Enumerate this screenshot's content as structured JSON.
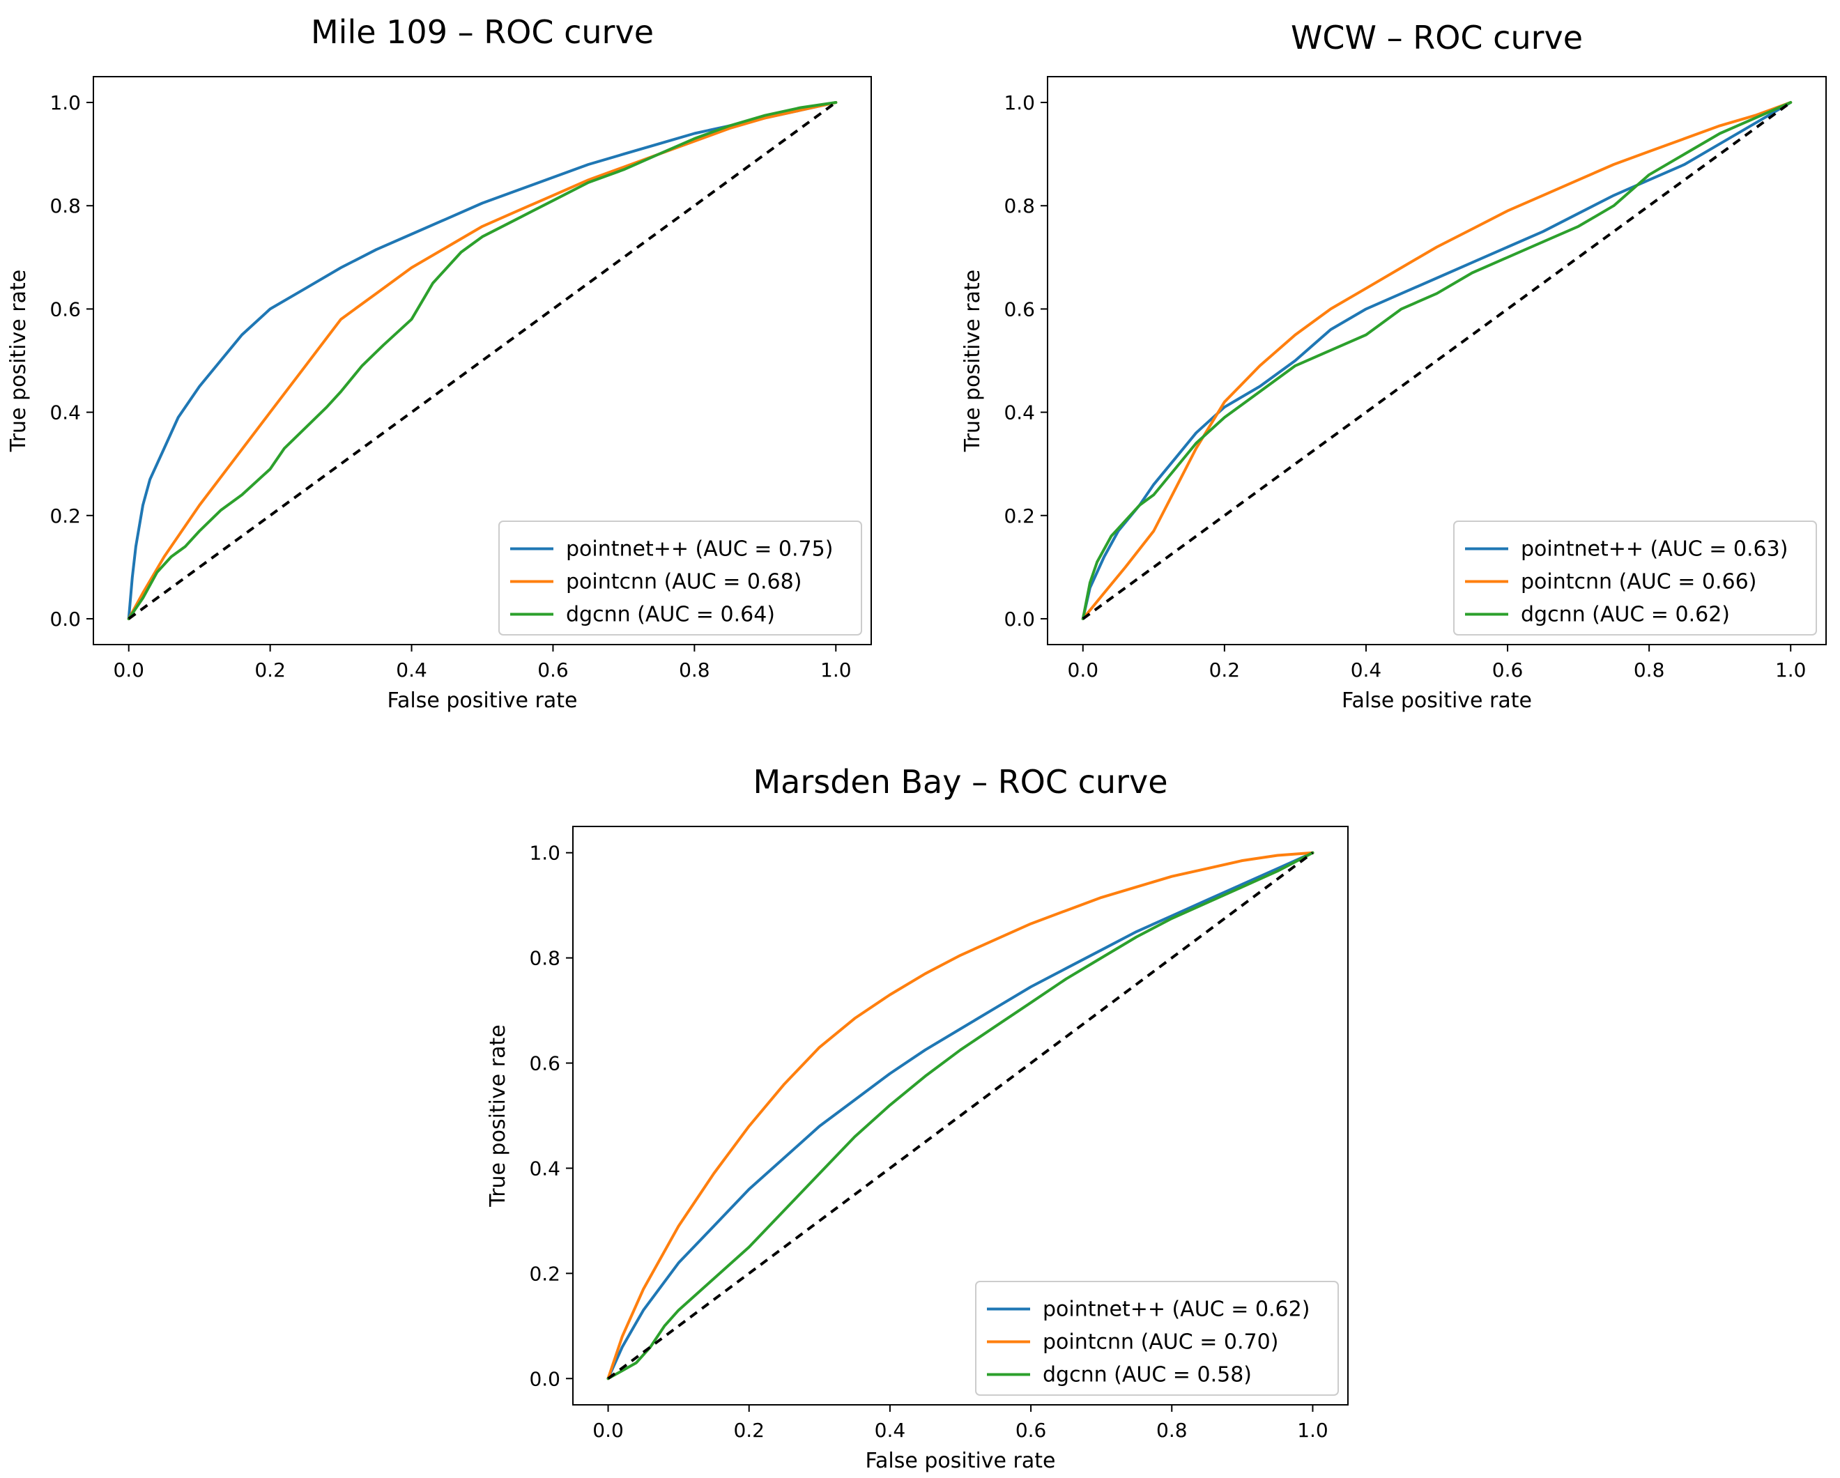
{
  "chart_data": [
    {
      "type": "line",
      "id": "mile109",
      "title": "Mile 109 – ROC curve",
      "xlabel": "False positive rate",
      "ylabel": "True positive rate",
      "xlim": [
        0,
        1
      ],
      "ylim": [
        0,
        1
      ],
      "xticks": [
        "0.0",
        "0.2",
        "0.4",
        "0.6",
        "0.8",
        "1.0"
      ],
      "yticks": [
        "0.0",
        "0.2",
        "0.4",
        "0.6",
        "0.8",
        "1.0"
      ],
      "legend_position": "lower-right",
      "series": [
        {
          "name": "pointnet++ (AUC = 0.75)",
          "color": "#1f77b4",
          "x": [
            0,
            0.005,
            0.01,
            0.02,
            0.03,
            0.05,
            0.07,
            0.1,
            0.13,
            0.16,
            0.2,
            0.25,
            0.3,
            0.35,
            0.4,
            0.45,
            0.5,
            0.55,
            0.6,
            0.65,
            0.7,
            0.75,
            0.8,
            0.85,
            0.9,
            0.95,
            1.0
          ],
          "y": [
            0,
            0.08,
            0.14,
            0.22,
            0.27,
            0.33,
            0.39,
            0.45,
            0.5,
            0.55,
            0.6,
            0.64,
            0.68,
            0.715,
            0.745,
            0.775,
            0.805,
            0.83,
            0.855,
            0.88,
            0.9,
            0.92,
            0.94,
            0.955,
            0.97,
            0.985,
            1.0
          ]
        },
        {
          "name": "pointcnn (AUC = 0.68)",
          "color": "#ff7f0e",
          "x": [
            0,
            0.02,
            0.05,
            0.08,
            0.1,
            0.15,
            0.2,
            0.25,
            0.3,
            0.35,
            0.4,
            0.45,
            0.5,
            0.55,
            0.6,
            0.65,
            0.7,
            0.75,
            0.8,
            0.85,
            0.9,
            0.95,
            1.0
          ],
          "y": [
            0,
            0.05,
            0.12,
            0.18,
            0.22,
            0.31,
            0.4,
            0.49,
            0.58,
            0.63,
            0.68,
            0.72,
            0.76,
            0.79,
            0.82,
            0.85,
            0.875,
            0.9,
            0.925,
            0.95,
            0.97,
            0.985,
            1.0
          ]
        },
        {
          "name": "dgcnn (AUC = 0.64)",
          "color": "#2ca02c",
          "x": [
            0,
            0.02,
            0.04,
            0.06,
            0.08,
            0.1,
            0.13,
            0.16,
            0.2,
            0.22,
            0.25,
            0.28,
            0.3,
            0.33,
            0.36,
            0.4,
            0.43,
            0.47,
            0.5,
            0.55,
            0.6,
            0.65,
            0.7,
            0.75,
            0.8,
            0.85,
            0.9,
            0.95,
            1.0
          ],
          "y": [
            0,
            0.04,
            0.09,
            0.12,
            0.14,
            0.17,
            0.21,
            0.24,
            0.29,
            0.33,
            0.37,
            0.41,
            0.44,
            0.49,
            0.53,
            0.58,
            0.65,
            0.71,
            0.74,
            0.775,
            0.81,
            0.845,
            0.87,
            0.9,
            0.93,
            0.955,
            0.975,
            0.99,
            1.0
          ]
        },
        {
          "name": "chance",
          "color": "#000000",
          "dashed": true,
          "x": [
            0,
            1
          ],
          "y": [
            0,
            1
          ]
        }
      ]
    },
    {
      "type": "line",
      "id": "wcw",
      "title": "WCW – ROC curve",
      "xlabel": "False positive rate",
      "ylabel": "True positive rate",
      "xlim": [
        0,
        1
      ],
      "ylim": [
        0,
        1
      ],
      "xticks": [
        "0.0",
        "0.2",
        "0.4",
        "0.6",
        "0.8",
        "1.0"
      ],
      "yticks": [
        "0.0",
        "0.2",
        "0.4",
        "0.6",
        "0.8",
        "1.0"
      ],
      "legend_position": "lower-right",
      "series": [
        {
          "name": "pointnet++ (AUC = 0.63)",
          "color": "#1f77b4",
          "x": [
            0,
            0.01,
            0.03,
            0.05,
            0.08,
            0.1,
            0.13,
            0.16,
            0.2,
            0.25,
            0.3,
            0.35,
            0.4,
            0.45,
            0.5,
            0.55,
            0.6,
            0.65,
            0.7,
            0.75,
            0.8,
            0.85,
            0.9,
            0.95,
            1.0
          ],
          "y": [
            0,
            0.06,
            0.12,
            0.17,
            0.22,
            0.26,
            0.31,
            0.36,
            0.41,
            0.45,
            0.5,
            0.56,
            0.6,
            0.63,
            0.66,
            0.69,
            0.72,
            0.75,
            0.785,
            0.82,
            0.85,
            0.88,
            0.92,
            0.96,
            1.0
          ]
        },
        {
          "name": "pointcnn (AUC = 0.66)",
          "color": "#ff7f0e",
          "x": [
            0,
            0.03,
            0.06,
            0.1,
            0.13,
            0.16,
            0.2,
            0.25,
            0.3,
            0.35,
            0.4,
            0.45,
            0.5,
            0.55,
            0.6,
            0.65,
            0.7,
            0.75,
            0.8,
            0.85,
            0.9,
            0.95,
            1.0
          ],
          "y": [
            0,
            0.05,
            0.1,
            0.17,
            0.25,
            0.33,
            0.42,
            0.49,
            0.55,
            0.6,
            0.64,
            0.68,
            0.72,
            0.755,
            0.79,
            0.82,
            0.85,
            0.88,
            0.905,
            0.93,
            0.955,
            0.975,
            1.0
          ]
        },
        {
          "name": "dgcnn (AUC = 0.62)",
          "color": "#2ca02c",
          "x": [
            0,
            0.01,
            0.02,
            0.04,
            0.06,
            0.08,
            0.1,
            0.13,
            0.16,
            0.2,
            0.25,
            0.3,
            0.35,
            0.4,
            0.45,
            0.5,
            0.55,
            0.6,
            0.65,
            0.7,
            0.75,
            0.8,
            0.85,
            0.9,
            0.95,
            1.0
          ],
          "y": [
            0,
            0.07,
            0.11,
            0.16,
            0.19,
            0.22,
            0.24,
            0.29,
            0.34,
            0.39,
            0.44,
            0.49,
            0.52,
            0.55,
            0.6,
            0.63,
            0.67,
            0.7,
            0.73,
            0.76,
            0.8,
            0.86,
            0.9,
            0.94,
            0.97,
            1.0
          ]
        },
        {
          "name": "chance",
          "color": "#000000",
          "dashed": true,
          "x": [
            0,
            1
          ],
          "y": [
            0,
            1
          ]
        }
      ]
    },
    {
      "type": "line",
      "id": "marsden",
      "title": "Marsden Bay – ROC curve",
      "xlabel": "False positive rate",
      "ylabel": "True positive rate",
      "xlim": [
        0,
        1
      ],
      "ylim": [
        0,
        1
      ],
      "xticks": [
        "0.0",
        "0.2",
        "0.4",
        "0.6",
        "0.8",
        "1.0"
      ],
      "yticks": [
        "0.0",
        "0.2",
        "0.4",
        "0.6",
        "0.8",
        "1.0"
      ],
      "legend_position": "lower-right",
      "series": [
        {
          "name": "pointnet++ (AUC = 0.62)",
          "color": "#1f77b4",
          "x": [
            0,
            0.02,
            0.05,
            0.1,
            0.15,
            0.2,
            0.25,
            0.3,
            0.35,
            0.4,
            0.45,
            0.5,
            0.55,
            0.6,
            0.65,
            0.7,
            0.75,
            0.8,
            0.85,
            0.9,
            0.95,
            1.0
          ],
          "y": [
            0,
            0.06,
            0.13,
            0.22,
            0.29,
            0.36,
            0.42,
            0.48,
            0.53,
            0.58,
            0.625,
            0.665,
            0.705,
            0.745,
            0.78,
            0.815,
            0.85,
            0.88,
            0.91,
            0.94,
            0.97,
            1.0
          ]
        },
        {
          "name": "pointcnn (AUC = 0.70)",
          "color": "#ff7f0e",
          "x": [
            0,
            0.02,
            0.05,
            0.1,
            0.15,
            0.2,
            0.25,
            0.3,
            0.35,
            0.4,
            0.45,
            0.5,
            0.55,
            0.6,
            0.65,
            0.7,
            0.75,
            0.8,
            0.85,
            0.9,
            0.95,
            1.0
          ],
          "y": [
            0,
            0.08,
            0.17,
            0.29,
            0.39,
            0.48,
            0.56,
            0.63,
            0.685,
            0.73,
            0.77,
            0.805,
            0.835,
            0.865,
            0.89,
            0.915,
            0.935,
            0.955,
            0.97,
            0.985,
            0.995,
            1.0
          ]
        },
        {
          "name": "dgcnn (AUC = 0.58)",
          "color": "#2ca02c",
          "x": [
            0,
            0.02,
            0.04,
            0.06,
            0.08,
            0.1,
            0.15,
            0.2,
            0.25,
            0.3,
            0.35,
            0.4,
            0.45,
            0.5,
            0.55,
            0.6,
            0.65,
            0.7,
            0.75,
            0.8,
            0.85,
            0.9,
            0.95,
            1.0
          ],
          "y": [
            0,
            0.015,
            0.03,
            0.06,
            0.1,
            0.13,
            0.19,
            0.25,
            0.32,
            0.39,
            0.46,
            0.52,
            0.575,
            0.625,
            0.67,
            0.715,
            0.76,
            0.8,
            0.84,
            0.875,
            0.905,
            0.935,
            0.965,
            1.0
          ]
        },
        {
          "name": "chance",
          "color": "#000000",
          "dashed": true,
          "x": [
            0,
            1
          ],
          "y": [
            0,
            1
          ]
        }
      ]
    }
  ]
}
